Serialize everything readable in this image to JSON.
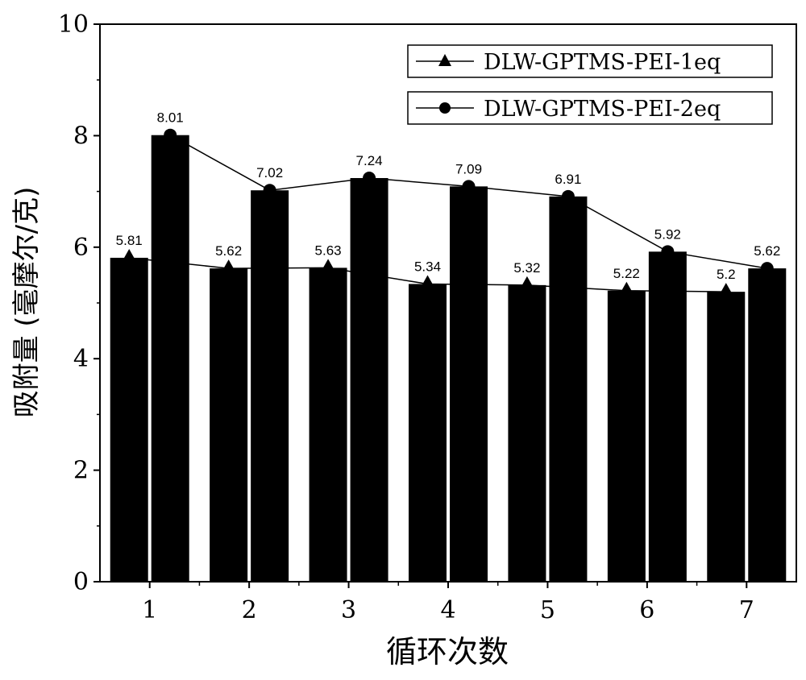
{
  "chart_data": {
    "type": "bar",
    "xlabel": "循环次数",
    "ylabel": "吸附量 (毫摩尔/克)",
    "categories": [
      "1",
      "2",
      "3",
      "4",
      "5",
      "6",
      "7"
    ],
    "ylim": [
      0,
      10
    ],
    "yticks": [
      "0",
      "2",
      "4",
      "6",
      "8",
      "10"
    ],
    "series": [
      {
        "name": "DLW-GPTMS-PEI-1eq",
        "marker": "triangle",
        "values": [
          5.81,
          5.62,
          5.63,
          5.34,
          5.32,
          5.22,
          5.2
        ],
        "labels": [
          "5.81",
          "5.62",
          "5.63",
          "5.34",
          "5.32",
          "5.22",
          "5.2"
        ]
      },
      {
        "name": "DLW-GPTMS-PEI-2eq",
        "marker": "circle",
        "values": [
          8.01,
          7.02,
          7.24,
          7.09,
          6.91,
          5.92,
          5.62
        ],
        "labels": [
          "8.01",
          "7.02",
          "7.24",
          "7.09",
          "6.91",
          "5.92",
          "5.62"
        ]
      }
    ],
    "legend_position": "top-right",
    "grid": false,
    "colors": {
      "bars": "#000000",
      "lines": "#000000",
      "background": "#ffffff"
    }
  }
}
